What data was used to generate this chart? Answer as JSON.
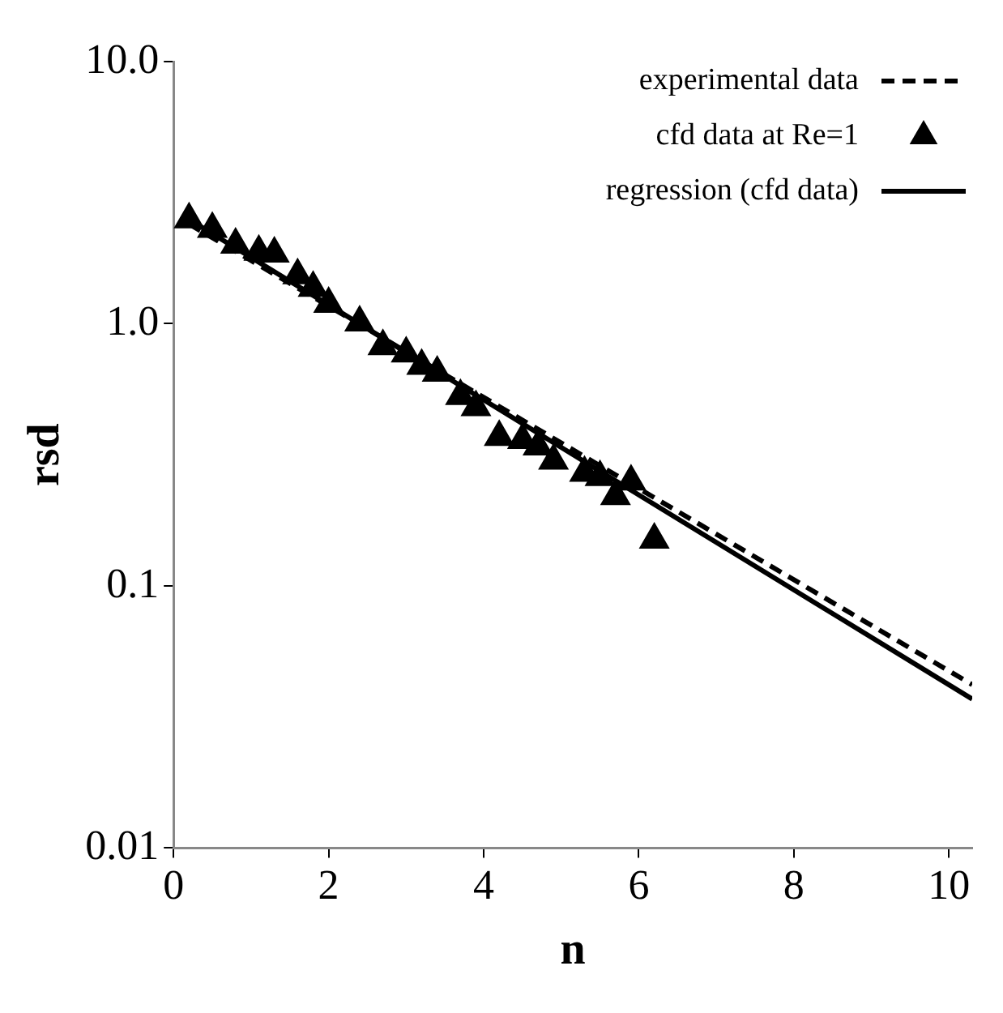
{
  "chart_data": {
    "type": "scatter",
    "xlabel": "n",
    "ylabel": "rsd",
    "log": "y",
    "grid": false,
    "legend": "top right",
    "xlim": [
      0,
      10.3
    ],
    "xticks": [
      0,
      2,
      4,
      6,
      8,
      10
    ],
    "ylim": [
      0.01,
      10
    ],
    "yticks": [
      {
        "value": 0.01,
        "label": "0.01"
      },
      0.1,
      {
        "value": 1,
        "label": "1.0"
      },
      {
        "value": 10,
        "label": "10.0"
      }
    ],
    "series": [
      {
        "name": "experimental data",
        "type": "line",
        "line_style": "dashed",
        "marker": "none",
        "color": "#000000",
        "x": [
          0.2,
          10.3
        ],
        "values": [
          2.4,
          0.042
        ]
      },
      {
        "name": "cfd data at Re=1",
        "marker": "triangle",
        "color": "#000000",
        "x": [
          0.2,
          0.5,
          0.8,
          1.1,
          1.3,
          1.6,
          1.8,
          2.0,
          2.4,
          2.7,
          3.0,
          3.2,
          3.4,
          3.7,
          3.9,
          4.2,
          4.5,
          4.7,
          4.9,
          5.3,
          5.5,
          5.7,
          5.9,
          6.2
        ],
        "values": [
          2.5,
          2.3,
          2.0,
          1.88,
          1.85,
          1.53,
          1.37,
          1.19,
          1.01,
          0.82,
          0.77,
          0.69,
          0.65,
          0.53,
          0.48,
          0.37,
          0.36,
          0.34,
          0.3,
          0.27,
          0.26,
          0.22,
          0.25,
          0.15
        ]
      },
      {
        "name": "regression (cfd data)",
        "type": "line",
        "line_style": "solid",
        "marker": "none",
        "color": "#000000",
        "x": [
          0.2,
          10.3
        ],
        "values": [
          2.5,
          0.037
        ]
      }
    ]
  }
}
